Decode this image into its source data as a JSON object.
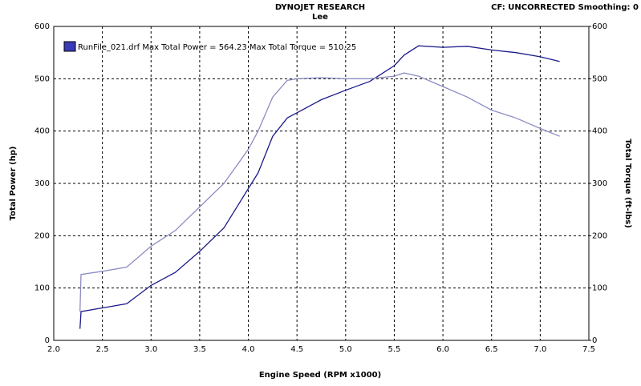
{
  "chart_data": {
    "type": "line",
    "title": "DYNOJET RESEARCH",
    "subtitle": "Lee",
    "annotation": "CF: UNCORRECTED  Smoothing: 0",
    "legend_text": "RunFile_021.drf Max Total Power = 564.23    Max Total Torque = 510.25",
    "x_label": "Engine Speed (RPM x1000)",
    "y_label": "Total Power (hp)",
    "y2_label": "Total Torque (ft-lbs)",
    "x": [
      2.27,
      2.28,
      2.5,
      2.75,
      3.0,
      3.25,
      3.5,
      3.75,
      4.0,
      4.1,
      4.25,
      4.4,
      4.5,
      4.75,
      5.0,
      5.25,
      5.5,
      5.6,
      5.75,
      6.0,
      6.25,
      6.5,
      6.75,
      7.0,
      7.2
    ],
    "series": [
      {
        "name": "Total Power",
        "color": "#1c1c8a",
        "values": [
          22,
          55,
          62,
          70,
          105,
          130,
          170,
          215,
          290,
          320,
          390,
          425,
          435,
          460,
          478,
          495,
          525,
          545,
          563,
          560,
          562,
          555,
          550,
          542,
          533
        ]
      },
      {
        "name": "Total Torque",
        "color": "#8c8cc4",
        "axis": "y2",
        "values": [
          55,
          126,
          132,
          140,
          180,
          210,
          255,
          300,
          365,
          400,
          465,
          497,
          500,
          502,
          500,
          500,
          505,
          511,
          505,
          485,
          465,
          440,
          425,
          405,
          390
        ]
      }
    ],
    "xlim": [
      2.0,
      7.5
    ],
    "xticks": [
      {
        "value": 2,
        "label": "2.0"
      },
      2.5,
      {
        "value": 3,
        "label": "3.0"
      },
      3.5,
      {
        "value": 4,
        "label": "4.0"
      },
      4.5,
      {
        "value": 5,
        "label": "5.0"
      },
      5.5,
      {
        "value": 6,
        "label": "6.0"
      },
      6.5,
      {
        "value": 7,
        "label": "7.0"
      },
      7.5
    ],
    "ylim": [
      0,
      600
    ],
    "yticks": [
      0,
      100,
      200,
      300,
      400,
      500,
      600
    ],
    "y2lim": [
      0,
      600
    ],
    "y2ticks": [
      0,
      100,
      200,
      300,
      400,
      500,
      600
    ],
    "grid": true
  }
}
